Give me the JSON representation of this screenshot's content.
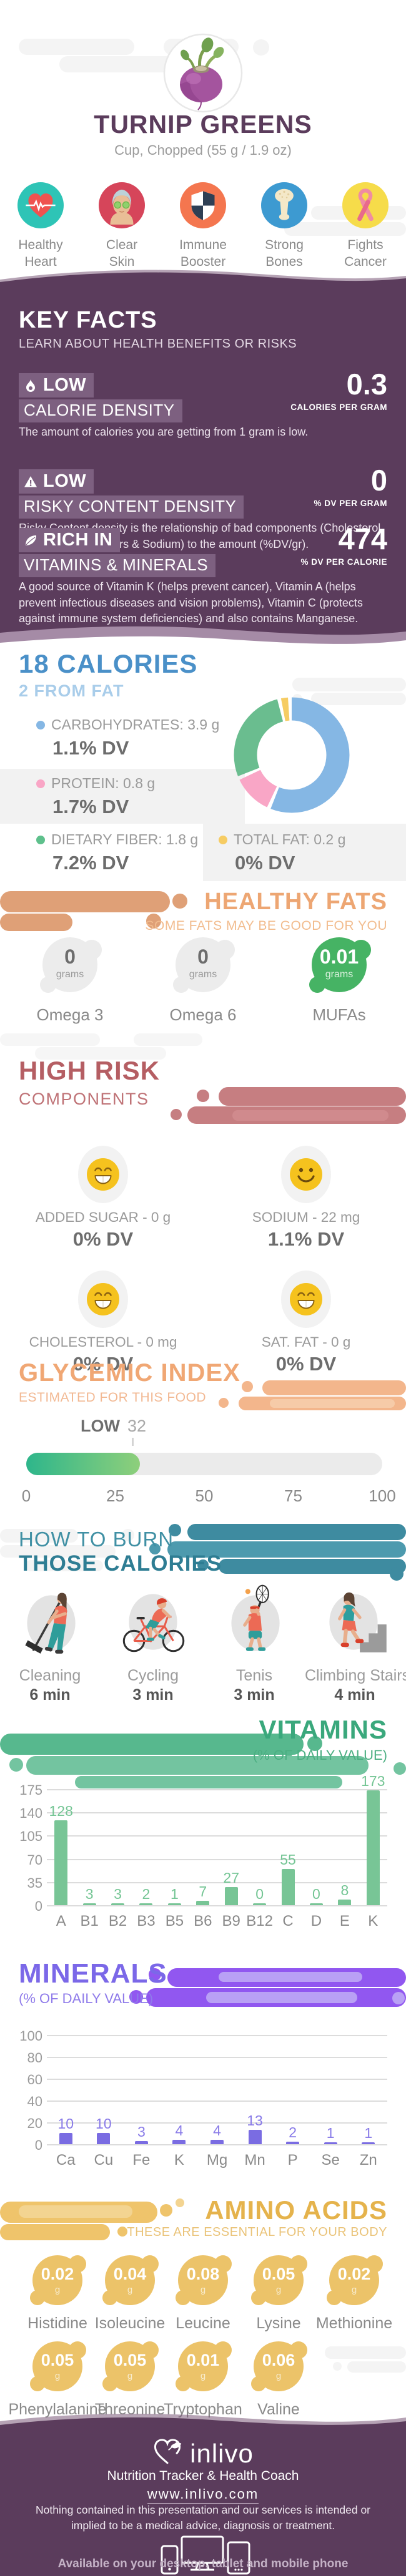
{
  "colors": {
    "brand_purple": "#5B3C5C",
    "badge_purple": "#7D6080",
    "calories_blue": "#4A90C8",
    "fats_orange": "#EDA673",
    "risk_red": "#B55E63",
    "gi_orange": "#F0A774",
    "burn_teal": "#2E7D93",
    "vitamins_green": "#3AA87C",
    "minerals_purple": "#7B68E8",
    "amino_gold": "#E5B34C",
    "gi_fill_start": "#2EB68B",
    "gi_fill_end": "#8ECF7B"
  },
  "header": {
    "photo_icon": "turnip-photo",
    "title": "TURNIP GREENS",
    "subtitle": "Cup, Chopped (55 g / 1.9 oz)",
    "benefits": [
      {
        "icon": "healthy-heart-icon",
        "label": "Healthy Heart"
      },
      {
        "icon": "clear-skin-icon",
        "label": "Clear Skin"
      },
      {
        "icon": "immune-booster-icon",
        "label": "Immune Booster"
      },
      {
        "icon": "strong-bones-icon",
        "label": "Strong Bones"
      },
      {
        "icon": "fights-cancer-icon",
        "label": "Fights Cancer"
      }
    ]
  },
  "key_facts": {
    "title": "KEY FACTS",
    "subtitle": "LEARN ABOUT HEALTH BENEFITS OR RISKS",
    "facts": [
      {
        "icon": "flame-icon",
        "badge": "LOW",
        "label": "CALORIE DENSITY",
        "value": "0.3",
        "unit": "CALORIES PER GRAM",
        "description": "The amount of calories you are getting from 1 gram is low."
      },
      {
        "icon": "warning-icon",
        "badge": "LOW",
        "label": "RISKY CONTENT DENSITY",
        "value": "0",
        "unit": "% DV PER GRAM",
        "description": "Risky Content density is the relationship of bad components (Cholesterol, Saturated Fat, Sugars & Sodium) to the amount (%DV/gr)."
      },
      {
        "icon": "leaf-icon",
        "badge": "RICH IN",
        "label": "VITAMINS & MINERALS",
        "value": "474",
        "unit": "% DV PER CALORIE",
        "description": "A good source of Vitamin K (helps prevent cancer), Vitamin A (helps prevent infectious diseases and vision problems), Vitamin C (protects against immune system deficiencies) and also contains Manganese."
      }
    ]
  },
  "calories": {
    "title": "18 CALORIES",
    "subtitle": "2 FROM FAT",
    "macros": [
      {
        "name": "CARBOHYDRATES: 3.9 g",
        "dv": "1.1% DV",
        "color": "#85B7E4"
      },
      {
        "name": "PROTEIN: 0.8 g",
        "dv": "1.7% DV",
        "color": "#F9A6C6"
      },
      {
        "name": "DIETARY FIBER: 1.8 g",
        "dv": "7.2% DV",
        "color": "#5EC08C"
      },
      {
        "name": "TOTAL FAT: 0.2 g",
        "dv": "0% DV",
        "color": "#F6CC63"
      }
    ]
  },
  "healthy_fats": {
    "title": "HEALTHY FATS",
    "subtitle": "SOME FATS MAY BE GOOD FOR YOU",
    "items": [
      {
        "value": "0",
        "unit": "grams",
        "label": "Omega 3",
        "highlighted": false
      },
      {
        "value": "0",
        "unit": "grams",
        "label": "Omega 6",
        "highlighted": false
      },
      {
        "value": "0.01",
        "unit": "grams",
        "label": "MUFAs",
        "highlighted": true
      }
    ]
  },
  "high_risk": {
    "title": "HIGH RISK",
    "subtitle": "COMPONENTS",
    "items": [
      {
        "face": "grin-emoji-icon",
        "label": "ADDED SUGAR - 0 g",
        "dv": "0% DV"
      },
      {
        "face": "smile-emoji-icon",
        "label": "SODIUM - 22 mg",
        "dv": "1.1% DV"
      },
      {
        "face": "grin-emoji-icon",
        "label": "CHOLESTEROL - 0 mg",
        "dv": "0% DV"
      },
      {
        "face": "grin-emoji-icon",
        "label": "SAT. FAT - 0 g",
        "dv": "0% DV"
      }
    ]
  },
  "glycemic_index": {
    "title": "GLYCEMIC INDEX",
    "subtitle": "ESTIMATED FOR THIS FOOD",
    "level": "LOW",
    "value": 32,
    "max": 100,
    "scale": [
      "0",
      "25",
      "50",
      "75",
      "100"
    ]
  },
  "burn": {
    "title_light": "HOW TO BURN",
    "title_bold": "THOSE CALORIES",
    "activities": [
      {
        "icon": "cleaning-icon",
        "label": "Cleaning",
        "duration": "6 min"
      },
      {
        "icon": "cycling-icon",
        "label": "Cycling",
        "duration": "3 min"
      },
      {
        "icon": "tennis-icon",
        "label": "Tenis",
        "duration": "3 min"
      },
      {
        "icon": "climbing-stairs-icon",
        "label": "Climbing Stairs",
        "duration": "4 min"
      }
    ]
  },
  "vitamins": {
    "title": "VITAMINS",
    "subtitle": "(% OF DAILY VALUE)"
  },
  "minerals": {
    "title": "MINERALS",
    "subtitle": "(% OF DAILY VALUE)"
  },
  "amino_acids": {
    "title": "AMINO ACIDS",
    "subtitle": "THESE ARE ESSENTIAL FOR YOUR BODY",
    "items": [
      {
        "value": "0.02",
        "unit": "g",
        "label": "Histidine"
      },
      {
        "value": "0.04",
        "unit": "g",
        "label": "Isoleucine"
      },
      {
        "value": "0.08",
        "unit": "g",
        "label": "Leucine"
      },
      {
        "value": "0.05",
        "unit": "g",
        "label": "Lysine"
      },
      {
        "value": "0.02",
        "unit": "g",
        "label": "Methionine"
      },
      {
        "value": "0.05",
        "unit": "g",
        "label": "Phenylalanine"
      },
      {
        "value": "0.05",
        "unit": "g",
        "label": "Threonine"
      },
      {
        "value": "0.01",
        "unit": "g",
        "label": "Tryptophan"
      },
      {
        "value": "0.06",
        "unit": "g",
        "label": "Valine"
      }
    ]
  },
  "footer": {
    "logo_icon": "inlivo-heart-logo",
    "brand": "inlivo",
    "tagline": "Nutrition Tracker & Health Coach",
    "url": "www.inlivo.com",
    "disclaimer": "Nothing contained in this presentation and our services is intended or implied to be a medical advice, diagnosis or treatment.",
    "devices_icon": "devices-icon",
    "availability": "Available on your desktop, tablet and mobile phone"
  },
  "chart_data": [
    {
      "type": "pie",
      "donut": true,
      "title": "Calorie composition",
      "labels": [
        "Carbohydrates",
        "Protein",
        "Dietary Fiber",
        "Total Fat"
      ],
      "values_pct": [
        57,
        12,
        28,
        3
      ],
      "colors": [
        "#85B7E4",
        "#F9A6C6",
        "#6ABD8F",
        "#F6CC63"
      ]
    },
    {
      "type": "bar",
      "title": "VITAMINS",
      "ylabel": "% of Daily Value",
      "categories": [
        "A",
        "B1",
        "B2",
        "B3",
        "B5",
        "B6",
        "B9",
        "B12",
        "C",
        "D",
        "E",
        "K"
      ],
      "values": [
        128,
        3,
        3,
        2,
        1,
        7,
        27,
        0,
        55,
        0,
        8,
        173
      ],
      "ylim": [
        0,
        175
      ],
      "yticks": [
        0,
        35,
        70,
        105,
        140,
        175
      ],
      "bar_color": "#78C596",
      "label_color": "#74C594",
      "grid": true,
      "value_labels": true
    },
    {
      "type": "bar",
      "title": "MINERALS",
      "ylabel": "% of Daily Value",
      "categories": [
        "Ca",
        "Cu",
        "Fe",
        "K",
        "Mg",
        "Mn",
        "P",
        "Se",
        "Zn"
      ],
      "values": [
        10,
        10,
        3,
        4,
        4,
        13,
        2,
        1,
        1
      ],
      "ylim": [
        0,
        100
      ],
      "yticks": [
        0,
        20,
        40,
        60,
        80,
        100
      ],
      "bar_color": "#7A6CE2",
      "label_color": "#8A7CE8",
      "grid": true,
      "value_labels": true
    },
    {
      "type": "gauge",
      "title": "GLYCEMIC INDEX",
      "label": "LOW",
      "value": 32,
      "range": [
        0,
        100
      ],
      "ticks": [
        0,
        25,
        50,
        75,
        100
      ]
    }
  ]
}
